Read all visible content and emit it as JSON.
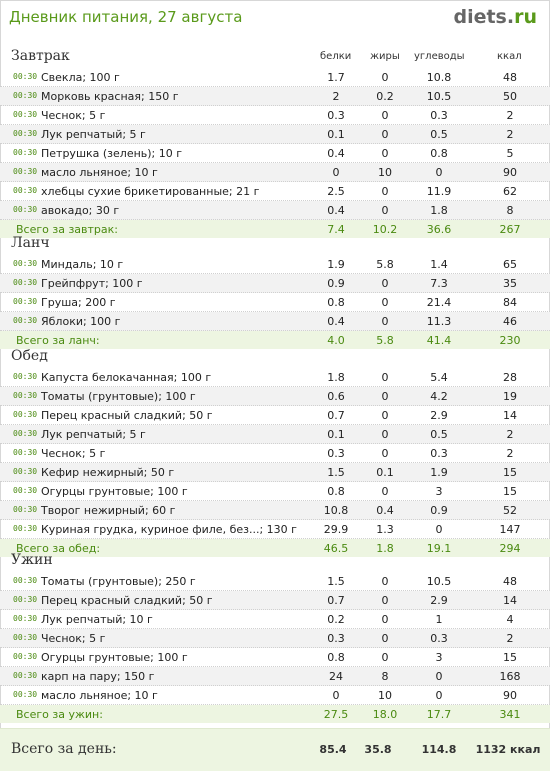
{
  "header": {
    "title": "Дневник питания, 27 августа",
    "logo_main": "diets",
    "logo_dot": ".",
    "logo_tld": "ru"
  },
  "columns": {
    "protein": "белки",
    "fat": "жиры",
    "carbs": "углеводы",
    "kcal": "ккал"
  },
  "meals": [
    {
      "title": "Завтрак",
      "items": [
        {
          "time": "00:30",
          "name": "Свекла; 100 г",
          "protein": "1.7",
          "fat": "0",
          "carbs": "10.8",
          "kcal": "48"
        },
        {
          "time": "00:30",
          "name": "Морковь красная; 150 г",
          "protein": "2",
          "fat": "0.2",
          "carbs": "10.5",
          "kcal": "50"
        },
        {
          "time": "00:30",
          "name": "Чеснок; 5 г",
          "protein": "0.3",
          "fat": "0",
          "carbs": "0.3",
          "kcal": "2"
        },
        {
          "time": "00:30",
          "name": "Лук репчатый; 5 г",
          "protein": "0.1",
          "fat": "0",
          "carbs": "0.5",
          "kcal": "2"
        },
        {
          "time": "00:30",
          "name": "Петрушка (зелень); 10 г",
          "protein": "0.4",
          "fat": "0",
          "carbs": "0.8",
          "kcal": "5"
        },
        {
          "time": "00:30",
          "name": "масло льняное; 10 г",
          "protein": "0",
          "fat": "10",
          "carbs": "0",
          "kcal": "90"
        },
        {
          "time": "00:30",
          "name": "хлебцы сухие брикетированные; 21 г",
          "protein": "2.5",
          "fat": "0",
          "carbs": "11.9",
          "kcal": "62"
        },
        {
          "time": "00:30",
          "name": "авокадо; 30 г",
          "protein": "0.4",
          "fat": "0",
          "carbs": "1.8",
          "kcal": "8"
        }
      ],
      "total": {
        "label": "Всего за завтрак:",
        "protein": "7.4",
        "fat": "10.2",
        "carbs": "36.6",
        "kcal": "267"
      }
    },
    {
      "title": "Ланч",
      "items": [
        {
          "time": "00:30",
          "name": "Миндаль; 10 г",
          "protein": "1.9",
          "fat": "5.8",
          "carbs": "1.4",
          "kcal": "65"
        },
        {
          "time": "00:30",
          "name": "Грейпфрут; 100 г",
          "protein": "0.9",
          "fat": "0",
          "carbs": "7.3",
          "kcal": "35"
        },
        {
          "time": "00:30",
          "name": "Груша; 200 г",
          "protein": "0.8",
          "fat": "0",
          "carbs": "21.4",
          "kcal": "84"
        },
        {
          "time": "00:30",
          "name": "Яблоки; 100 г",
          "protein": "0.4",
          "fat": "0",
          "carbs": "11.3",
          "kcal": "46"
        }
      ],
      "total": {
        "label": "Всего за ланч:",
        "protein": "4.0",
        "fat": "5.8",
        "carbs": "41.4",
        "kcal": "230"
      }
    },
    {
      "title": "Обед",
      "items": [
        {
          "time": "00:30",
          "name": "Капуста белокачанная; 100 г",
          "protein": "1.8",
          "fat": "0",
          "carbs": "5.4",
          "kcal": "28"
        },
        {
          "time": "00:30",
          "name": "Томаты (грунтовые); 100 г",
          "protein": "0.6",
          "fat": "0",
          "carbs": "4.2",
          "kcal": "19"
        },
        {
          "time": "00:30",
          "name": "Перец красный сладкий; 50 г",
          "protein": "0.7",
          "fat": "0",
          "carbs": "2.9",
          "kcal": "14"
        },
        {
          "time": "00:30",
          "name": "Лук репчатый; 5 г",
          "protein": "0.1",
          "fat": "0",
          "carbs": "0.5",
          "kcal": "2"
        },
        {
          "time": "00:30",
          "name": "Чеснок; 5 г",
          "protein": "0.3",
          "fat": "0",
          "carbs": "0.3",
          "kcal": "2"
        },
        {
          "time": "00:30",
          "name": "Кефир нежирный; 50 г",
          "protein": "1.5",
          "fat": "0.1",
          "carbs": "1.9",
          "kcal": "15"
        },
        {
          "time": "00:30",
          "name": "Огурцы грунтовые; 100 г",
          "protein": "0.8",
          "fat": "0",
          "carbs": "3",
          "kcal": "15"
        },
        {
          "time": "00:30",
          "name": "Творог нежирный; 60 г",
          "protein": "10.8",
          "fat": "0.4",
          "carbs": "0.9",
          "kcal": "52"
        },
        {
          "time": "00:30",
          "name": "Куриная грудка, куриное филе, без...; 130 г",
          "protein": "29.9",
          "fat": "1.3",
          "carbs": "0",
          "kcal": "147"
        }
      ],
      "total": {
        "label": "Всего за обед:",
        "protein": "46.5",
        "fat": "1.8",
        "carbs": "19.1",
        "kcal": "294"
      }
    },
    {
      "title": "Ужин",
      "items": [
        {
          "time": "00:30",
          "name": "Томаты (грунтовые); 250 г",
          "protein": "1.5",
          "fat": "0",
          "carbs": "10.5",
          "kcal": "48"
        },
        {
          "time": "00:30",
          "name": "Перец красный сладкий; 50 г",
          "protein": "0.7",
          "fat": "0",
          "carbs": "2.9",
          "kcal": "14"
        },
        {
          "time": "00:30",
          "name": "Лук репчатый; 10 г",
          "protein": "0.2",
          "fat": "0",
          "carbs": "1",
          "kcal": "4"
        },
        {
          "time": "00:30",
          "name": "Чеснок; 5 г",
          "protein": "0.3",
          "fat": "0",
          "carbs": "0.3",
          "kcal": "2"
        },
        {
          "time": "00:30",
          "name": "Огурцы грунтовые; 100 г",
          "protein": "0.8",
          "fat": "0",
          "carbs": "3",
          "kcal": "15"
        },
        {
          "time": "00:30",
          "name": "карп на пару; 150 г",
          "protein": "24",
          "fat": "8",
          "carbs": "0",
          "kcal": "168"
        },
        {
          "time": "00:30",
          "name": "масло льняное; 10 г",
          "protein": "0",
          "fat": "10",
          "carbs": "0",
          "kcal": "90"
        }
      ],
      "total": {
        "label": "Всего за ужин:",
        "protein": "27.5",
        "fat": "18.0",
        "carbs": "17.7",
        "kcal": "341"
      }
    }
  ],
  "day_total": {
    "label": "Всего за день:",
    "protein": "85.4",
    "fat": "35.8",
    "carbs": "114.8",
    "kcal": "1132 ккал"
  }
}
